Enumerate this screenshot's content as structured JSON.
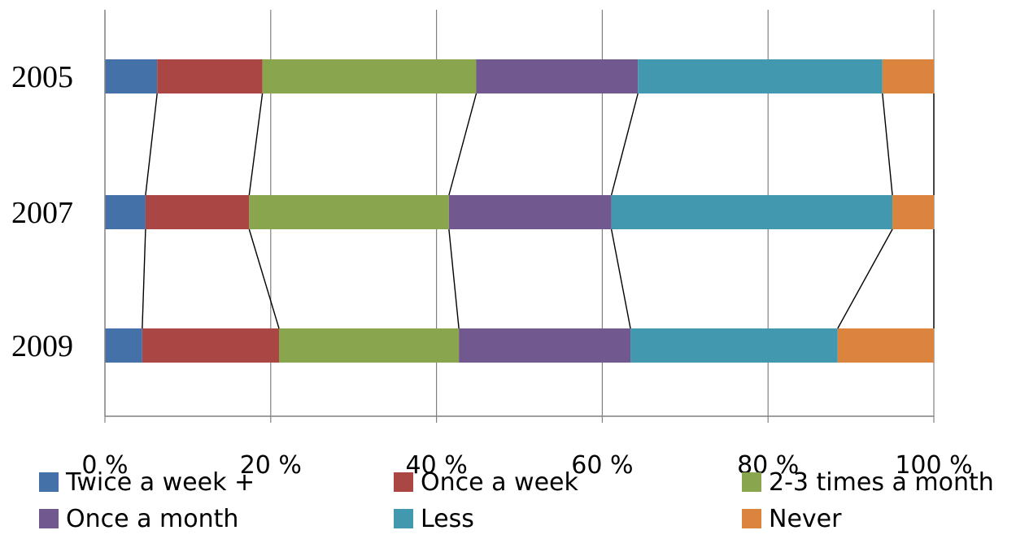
{
  "chart_data": {
    "type": "bar",
    "orientation": "horizontal",
    "stacked": "percent",
    "categories": [
      "2005",
      "2007",
      "2009"
    ],
    "series": [
      {
        "name": "Twice a week +",
        "color": "#4472a8",
        "values": [
          6.3,
          4.9,
          4.5
        ]
      },
      {
        "name": "Once a week",
        "color": "#aa4643",
        "values": [
          12.7,
          12.5,
          16.5
        ]
      },
      {
        "name": "2-3 times a month",
        "color": "#89a54e",
        "values": [
          25.8,
          24.1,
          21.7
        ]
      },
      {
        "name": "Once a month",
        "color": "#71588f",
        "values": [
          19.5,
          19.6,
          20.7
        ]
      },
      {
        "name": "Less",
        "color": "#4198af",
        "values": [
          29.5,
          33.9,
          25.0
        ]
      },
      {
        "name": "Never",
        "color": "#db843d",
        "values": [
          6.2,
          5.0,
          11.6
        ]
      }
    ],
    "x_ticks": [
      "0 %",
      "20 %",
      "40 %",
      "60 %",
      "80 %",
      "100 %"
    ],
    "xlim": [
      0,
      100
    ],
    "grid": true,
    "series_lines": true,
    "legend_position": "bottom"
  }
}
